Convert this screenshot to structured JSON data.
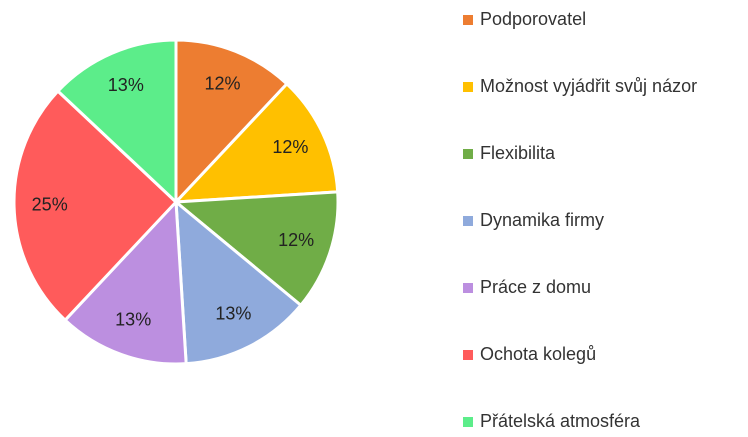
{
  "chart_data": {
    "type": "pie",
    "categories": [
      "Podporovatel",
      "Možnost vyjádřit svůj názor",
      "Flexibilita",
      "Dynamika firmy",
      "Práce z domu",
      "Ochota kolegů",
      "Přátelská atmosféra"
    ],
    "values": [
      12,
      12,
      12,
      13,
      13,
      25,
      13
    ],
    "value_labels": [
      "12%",
      "12%",
      "12%",
      "13%",
      "13%",
      "25%",
      "13%"
    ],
    "colors": [
      "#ED7D31",
      "#FFC000",
      "#70AD47",
      "#8FAADC",
      "#BC8FE0",
      "#FF5B5B",
      "#5CED8A"
    ],
    "legend": "right"
  }
}
